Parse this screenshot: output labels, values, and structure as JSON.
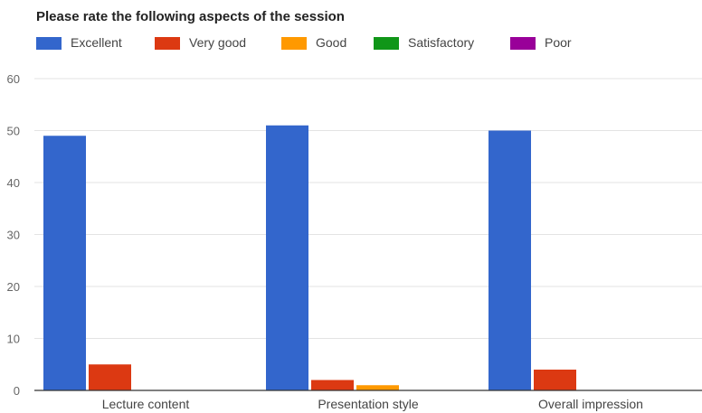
{
  "chart_data": {
    "type": "bar",
    "title": "Please rate the following aspects of the session",
    "categories": [
      "Lecture content",
      "Presentation style",
      "Overall impression"
    ],
    "series": [
      {
        "name": "Excellent",
        "color": "#3366cc",
        "values": [
          49,
          51,
          50
        ]
      },
      {
        "name": "Very good",
        "color": "#dc3912",
        "values": [
          5,
          2,
          4
        ]
      },
      {
        "name": "Good",
        "color": "#ff9900",
        "values": [
          0,
          1,
          0
        ]
      },
      {
        "name": "Satisfactory",
        "color": "#109618",
        "values": [
          0,
          0,
          0
        ]
      },
      {
        "name": "Poor",
        "color": "#990099",
        "values": [
          0,
          0,
          0
        ]
      }
    ],
    "ylim": [
      0,
      60
    ],
    "yticks": [
      0,
      10,
      20,
      30,
      40,
      50,
      60
    ],
    "xlabel": "",
    "ylabel": "",
    "grid": true,
    "legend_position": "top-left"
  }
}
